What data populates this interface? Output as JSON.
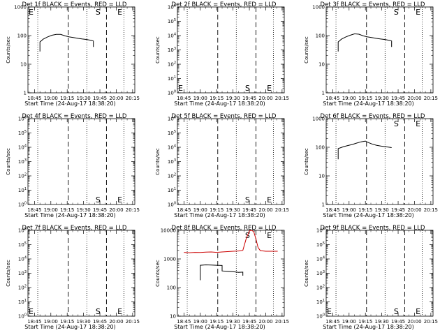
{
  "chart_data": [
    {
      "type": "line",
      "title": "Det 1f BLACK = Events, RED = LLD",
      "xlabel": "Start Time (24-Aug-17 18:38:20)",
      "ylabel": "Counts/sec",
      "yscale": "log",
      "ylim": [
        1,
        1000
      ],
      "yticks": [
        {
          "v": 1,
          "label": "1"
        },
        {
          "v": 10,
          "label": "10"
        },
        {
          "v": 100,
          "label": "100"
        },
        {
          "v": 1000,
          "label": "1000"
        }
      ],
      "xticks": [
        "18:45",
        "19:00",
        "19:15",
        "19:30",
        "19:45",
        "20:00",
        "20:15"
      ],
      "markers": [
        {
          "label": "E",
          "t": 0
        },
        {
          "label": "S",
          "t": 58
        },
        {
          "label": "E",
          "t": 78
        }
      ],
      "series": [
        {
          "color": "#000000",
          "values": [
            [
              5,
              28
            ],
            [
              5,
              60
            ],
            [
              8,
              75
            ],
            [
              12,
              90
            ],
            [
              16,
              103
            ],
            [
              20,
              110
            ],
            [
              24,
              110
            ],
            [
              28,
              98
            ],
            [
              32,
              90
            ],
            [
              36,
              85
            ],
            [
              40,
              80
            ],
            [
              44,
              76
            ],
            [
              48,
              73
            ],
            [
              52,
              68
            ],
            [
              54,
              65
            ],
            [
              54,
              40
            ]
          ]
        }
      ]
    },
    {
      "type": "line",
      "title": "Det 2f BLACK = Events, RED = LLD",
      "xlabel": "Start Time (24-Aug-17 18:38:20)",
      "ylabel": "Counts/sec",
      "yscale": "log",
      "ylim": [
        1,
        1000000
      ],
      "yticks": [
        {
          "v": 1,
          "label": "10^0"
        },
        {
          "v": 10,
          "label": "10^1"
        },
        {
          "v": 100,
          "label": "10^2"
        },
        {
          "v": 1000,
          "label": "10^3"
        },
        {
          "v": 10000,
          "label": "10^4"
        },
        {
          "v": 100000,
          "label": "10^5"
        },
        {
          "v": 1000000,
          "label": "10^6"
        }
      ],
      "xticks": [
        "18:45",
        "19:00",
        "19:15",
        "19:30",
        "19:45",
        "20:00",
        "20:15"
      ],
      "markers": [
        {
          "label": "E",
          "t": 0
        },
        {
          "label": "S",
          "t": 58
        },
        {
          "label": "E",
          "t": 78
        }
      ],
      "series": []
    },
    {
      "type": "line",
      "title": "Det 3f BLACK = Events, RED = LLD",
      "xlabel": "Start Time (24-Aug-17 18:38:20)",
      "ylabel": "Counts/sec",
      "yscale": "log",
      "ylim": [
        1,
        1000
      ],
      "yticks": [
        {
          "v": 1,
          "label": "1"
        },
        {
          "v": 10,
          "label": "10"
        },
        {
          "v": 100,
          "label": "100"
        },
        {
          "v": 1000,
          "label": "1000"
        }
      ],
      "xticks": [
        "18:45",
        "19:00",
        "19:15",
        "19:30",
        "19:45",
        "20:00",
        "20:15"
      ],
      "markers": [
        {
          "label": "S",
          "t": 58
        },
        {
          "label": "E",
          "t": 78
        }
      ],
      "series": [
        {
          "color": "#000000",
          "values": [
            [
              5,
              28
            ],
            [
              5,
              60
            ],
            [
              8,
              75
            ],
            [
              12,
              90
            ],
            [
              16,
              103
            ],
            [
              20,
              115
            ],
            [
              24,
              112
            ],
            [
              28,
              98
            ],
            [
              32,
              90
            ],
            [
              36,
              85
            ],
            [
              40,
              80
            ],
            [
              44,
              76
            ],
            [
              48,
              73
            ],
            [
              52,
              68
            ],
            [
              54,
              65
            ],
            [
              54,
              40
            ]
          ]
        }
      ]
    },
    {
      "type": "line",
      "title": "Det 4f BLACK = Events, RED = LLD",
      "xlabel": "Start Time (24-Aug-17 18:38:20)",
      "ylabel": "Counts/sec",
      "yscale": "log",
      "ylim": [
        1,
        1000000
      ],
      "yticks": [
        {
          "v": 1,
          "label": "10^0"
        },
        {
          "v": 10,
          "label": "10^1"
        },
        {
          "v": 100,
          "label": "10^2"
        },
        {
          "v": 1000,
          "label": "10^3"
        },
        {
          "v": 10000,
          "label": "10^4"
        },
        {
          "v": 100000,
          "label": "10^5"
        },
        {
          "v": 1000000,
          "label": "10^6"
        }
      ],
      "xticks": [
        "18:45",
        "19:00",
        "19:15",
        "19:30",
        "19:45",
        "20:00",
        "20:15"
      ],
      "markers": [
        {
          "label": "S",
          "t": 58
        },
        {
          "label": "E",
          "t": 78
        }
      ],
      "series": []
    },
    {
      "type": "line",
      "title": "Det 5f BLACK = Events, RED = LLD",
      "xlabel": "Start Time (24-Aug-17 18:38:20)",
      "ylabel": "Counts/sec",
      "yscale": "log",
      "ylim": [
        1,
        1000000
      ],
      "yticks": [
        {
          "v": 1,
          "label": "10^0"
        },
        {
          "v": 10,
          "label": "10^1"
        },
        {
          "v": 100,
          "label": "10^2"
        },
        {
          "v": 1000,
          "label": "10^3"
        },
        {
          "v": 10000,
          "label": "10^4"
        },
        {
          "v": 100000,
          "label": "10^5"
        },
        {
          "v": 1000000,
          "label": "10^6"
        }
      ],
      "xticks": [
        "18:45",
        "19:00",
        "19:15",
        "19:30",
        "19:45",
        "20:00",
        "20:15"
      ],
      "markers": [
        {
          "label": "S",
          "t": 58
        },
        {
          "label": "E",
          "t": 78
        }
      ],
      "series": []
    },
    {
      "type": "line",
      "title": "Det 6f BLACK = Events, RED = LLD",
      "xlabel": "Start Time (24-Aug-17 18:38:20)",
      "ylabel": "Counts/sec",
      "yscale": "log",
      "ylim": [
        1,
        1000
      ],
      "yticks": [
        {
          "v": 1,
          "label": "1"
        },
        {
          "v": 10,
          "label": "10"
        },
        {
          "v": 100,
          "label": "100"
        },
        {
          "v": 1000,
          "label": "1000"
        }
      ],
      "xticks": [
        "18:45",
        "19:00",
        "19:15",
        "19:30",
        "19:45",
        "20:00",
        "20:15"
      ],
      "markers": [
        {
          "label": "S",
          "t": 58
        },
        {
          "label": "E",
          "t": 78
        }
      ],
      "series": [
        {
          "color": "#000000",
          "values": [
            [
              5,
              38
            ],
            [
              5,
              90
            ],
            [
              10,
              105
            ],
            [
              14,
              115
            ],
            [
              18,
              125
            ],
            [
              22,
              140
            ],
            [
              26,
              155
            ],
            [
              30,
              165
            ],
            [
              32,
              150
            ],
            [
              36,
              130
            ],
            [
              40,
              118
            ],
            [
              44,
              110
            ],
            [
              48,
              105
            ],
            [
              52,
              100
            ],
            [
              54,
              97
            ]
          ]
        }
      ]
    },
    {
      "type": "line",
      "title": "Det 7f BLACK = Events, RED = LLD",
      "xlabel": "Start Time (24-Aug-17 18:38:20)",
      "ylabel": "Counts/sec",
      "yscale": "log",
      "ylim": [
        1,
        1000000
      ],
      "yticks": [
        {
          "v": 1,
          "label": "10^0"
        },
        {
          "v": 10,
          "label": "10^1"
        },
        {
          "v": 100,
          "label": "10^2"
        },
        {
          "v": 1000,
          "label": "10^3"
        },
        {
          "v": 10000,
          "label": "10^4"
        },
        {
          "v": 100000,
          "label": "10^5"
        },
        {
          "v": 1000000,
          "label": "10^6"
        }
      ],
      "xticks": [
        "18:45",
        "19:00",
        "19:15",
        "19:30",
        "19:45",
        "20:00",
        "20:15"
      ],
      "markers": [
        {
          "label": "E",
          "t": 0
        },
        {
          "label": "S",
          "t": 58
        },
        {
          "label": "E",
          "t": 78
        }
      ],
      "series": []
    },
    {
      "type": "line",
      "title": "Det 8f BLACK = Events, RED = LLD",
      "xlabel": "Start Time (24-Aug-17 18:38:20)",
      "ylabel": "Counts/sec",
      "yscale": "log",
      "ylim": [
        10,
        10000
      ],
      "yticks": [
        {
          "v": 10,
          "label": "10"
        },
        {
          "v": 100,
          "label": "100"
        },
        {
          "v": 1000,
          "label": "1000"
        },
        {
          "v": 10000,
          "label": "10000"
        }
      ],
      "xticks": [
        "18:45",
        "19:00",
        "19:15",
        "19:30",
        "19:45",
        "20:00",
        "20:15"
      ],
      "markers": [
        {
          "label": "S",
          "t": 58
        },
        {
          "label": "E",
          "t": 78
        }
      ],
      "series": [
        {
          "color": "#cc0000",
          "values": [
            [
              0,
              1700
            ],
            [
              5,
              1650
            ],
            [
              10,
              1700
            ],
            [
              15,
              1680
            ],
            [
              20,
              1720
            ],
            [
              25,
              1750
            ],
            [
              30,
              1700
            ],
            [
              35,
              1750
            ],
            [
              40,
              1800
            ],
            [
              45,
              1850
            ],
            [
              50,
              1900
            ],
            [
              54,
              2000
            ],
            [
              57,
              5000
            ],
            [
              60,
              9500
            ],
            [
              62,
              10000
            ],
            [
              64,
              9000
            ],
            [
              66,
              5000
            ],
            [
              68,
              2500
            ],
            [
              70,
              1950
            ],
            [
              75,
              1850
            ],
            [
              80,
              1850
            ],
            [
              86,
              1850
            ]
          ]
        },
        {
          "color": "#000000",
          "values": [
            [
              15,
              180
            ],
            [
              15,
              600
            ],
            [
              20,
              620
            ],
            [
              25,
              610
            ],
            [
              30,
              600
            ],
            [
              35,
              590
            ],
            [
              35,
              380
            ],
            [
              40,
              370
            ],
            [
              45,
              360
            ],
            [
              50,
              340
            ],
            [
              54,
              345
            ],
            [
              54,
              260
            ]
          ]
        }
      ]
    },
    {
      "type": "line",
      "title": "Det 9f BLACK = Events, RED = LLD",
      "xlabel": "Start Time (24-Aug-17 18:38:20)",
      "ylabel": "Counts/sec",
      "yscale": "log",
      "ylim": [
        1,
        1000000
      ],
      "yticks": [
        {
          "v": 1,
          "label": "10^0"
        },
        {
          "v": 10,
          "label": "10^1"
        },
        {
          "v": 100,
          "label": "10^2"
        },
        {
          "v": 1000,
          "label": "10^3"
        },
        {
          "v": 10000,
          "label": "10^4"
        },
        {
          "v": 100000,
          "label": "10^5"
        },
        {
          "v": 1000000,
          "label": "10^6"
        }
      ],
      "xticks": [
        "18:45",
        "19:00",
        "19:15",
        "19:30",
        "19:45",
        "20:00",
        "20:15"
      ],
      "markers": [
        {
          "label": "E",
          "t": 0
        },
        {
          "label": "S",
          "t": 58
        },
        {
          "label": "E",
          "t": 78
        }
      ],
      "series": []
    }
  ]
}
